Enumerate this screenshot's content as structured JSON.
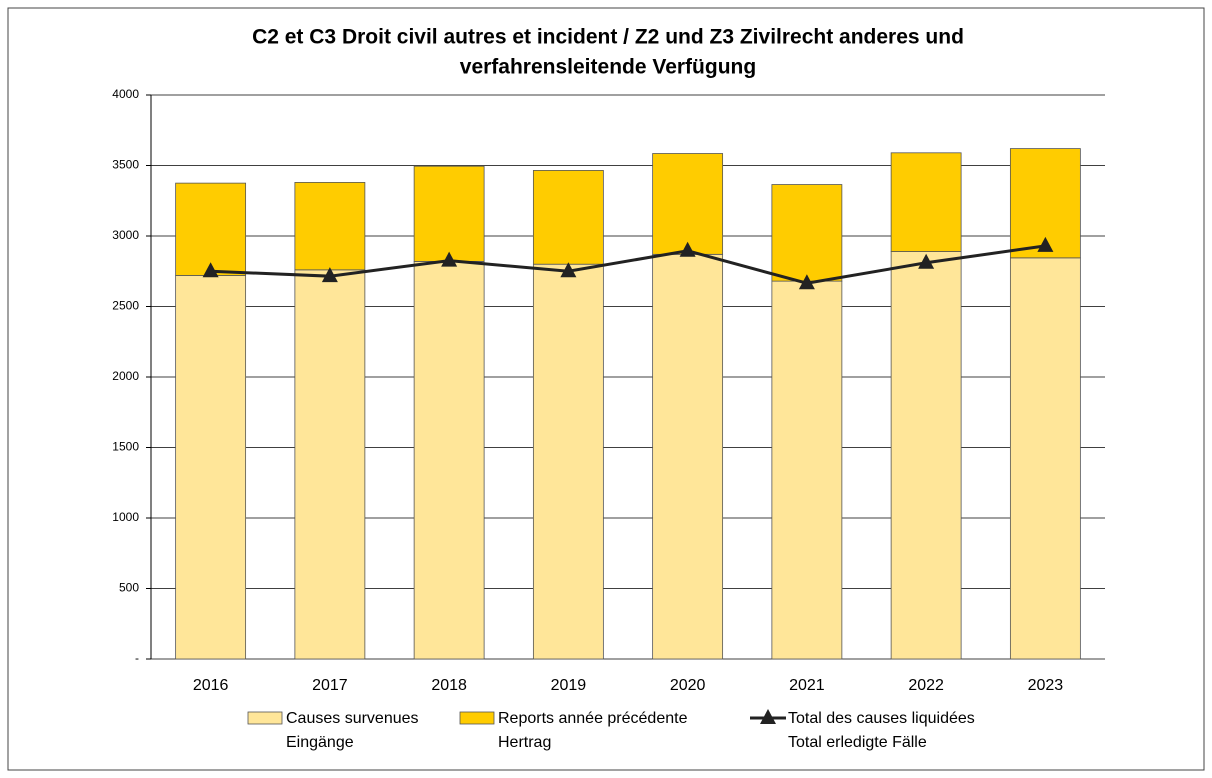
{
  "chart_data": {
    "type": "stacked-bar-line",
    "title": [
      "C2 et C3 Droit civil autres et incident / Z2 und Z3 Zivilrecht anderes und",
      "verfahrensleitende Verfügung"
    ],
    "categories": [
      "2016",
      "2017",
      "2018",
      "2019",
      "2020",
      "2021",
      "2022",
      "2023"
    ],
    "series": [
      {
        "name": [
          "Causes survenues",
          "Eingänge"
        ],
        "color": "#ffe699",
        "kind": "bar",
        "values": [
          2720,
          2760,
          2820,
          2800,
          2870,
          2680,
          2890,
          2845
        ]
      },
      {
        "name": [
          "Reports année précédente",
          "Hertrag"
        ],
        "color": "#ffcc00",
        "kind": "bar",
        "values": [
          655,
          620,
          675,
          665,
          715,
          685,
          700,
          775
        ]
      },
      {
        "name": [
          "Total des causes liquidées",
          "Total erledigte Fälle"
        ],
        "color": "#222222",
        "kind": "line",
        "values": [
          2750,
          2715,
          2825,
          2750,
          2895,
          2665,
          2810,
          2930
        ]
      }
    ],
    "ylim": [
      0,
      4000
    ],
    "yticks": [
      {
        "value": 0,
        "label": "-"
      },
      500,
      1000,
      1500,
      2000,
      2500,
      3000,
      3500,
      4000
    ],
    "grid": true,
    "legend": "bottom"
  }
}
